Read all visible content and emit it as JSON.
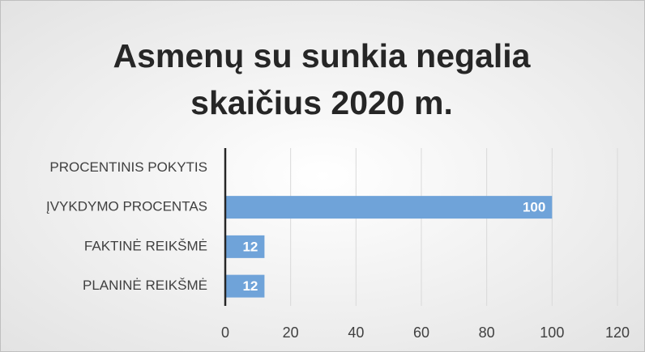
{
  "chart_data": {
    "type": "hbar",
    "title": [
      "Asmenų su sunkia negalia",
      "skaičius 2020 m."
    ],
    "categories": [
      "PROCENTINIS POKYTIS",
      "ĮVYKDYMO PROCENTAS",
      "FAKTINĖ REIKŠMĖ",
      "PLANINĖ REIKŠMĖ"
    ],
    "values": [
      null,
      100,
      12,
      12
    ],
    "color": "#6fa3d9",
    "xlim": [
      0,
      120
    ],
    "xticks": [
      0,
      20,
      40,
      60,
      80,
      100,
      120
    ],
    "grid": true
  }
}
